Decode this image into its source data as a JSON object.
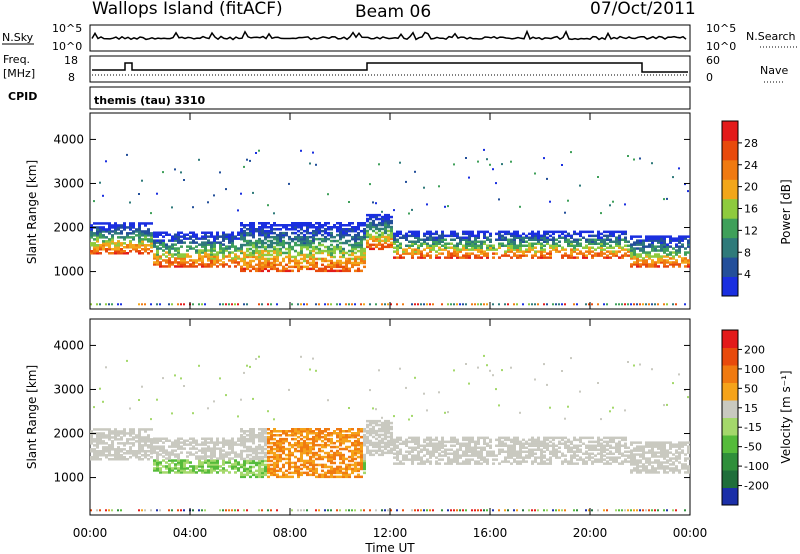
{
  "header": {
    "station": "Wallops Island (fitACF)",
    "beam": "Beam 06",
    "date": "07/Oct/2011"
  },
  "top_panels": {
    "nsky": {
      "label": "N.Sky",
      "ticks": [
        "10^5",
        "10^0"
      ],
      "right_label": "N.Search",
      "right_ticks": [
        "10^5",
        "10^0"
      ]
    },
    "freq": {
      "label_line1": "Freq.",
      "label_line2": "[MHz]",
      "ticks": [
        "18",
        "8"
      ],
      "right_label": "Nave",
      "right_ticks": [
        "60",
        "0"
      ]
    },
    "cpid": {
      "label": "CPID",
      "program": "themis (tau) 3310"
    }
  },
  "chart_data": [
    {
      "type": "heatmap",
      "name": "power",
      "ylabel": "Slant Range [km]",
      "ylim": [
        150,
        4600
      ],
      "yticks": [
        "4000",
        "3000",
        "2000",
        "1000"
      ],
      "xticks": [
        "00:00",
        "04:00",
        "08:00",
        "12:00",
        "16:00",
        "20:00",
        "00:00"
      ],
      "colorbar": {
        "label": "Power [dB]",
        "ticks": [
          "28",
          "24",
          "20",
          "16",
          "12",
          "8",
          "4"
        ],
        "colors": [
          "#1a2fe0",
          "#234f9a",
          "#2f7a7a",
          "#3fa05a",
          "#8ecb3e",
          "#f2a61a",
          "#f07a10",
          "#e84a0c",
          "#e31a1a"
        ]
      }
    },
    {
      "type": "heatmap",
      "name": "velocity",
      "ylabel": "Slant Range [km]",
      "ylim": [
        150,
        4600
      ],
      "yticks": [
        "4000",
        "3000",
        "2000",
        "1000"
      ],
      "xticks": [
        "00:00",
        "04:00",
        "08:00",
        "12:00",
        "16:00",
        "20:00",
        "00:00"
      ],
      "xlabel": "Time UT",
      "colorbar": {
        "label": "Velocity [m s⁻¹]",
        "ticks": [
          "200",
          "100",
          "50",
          "15",
          "-15",
          "-50",
          "-100",
          "-200"
        ],
        "colors": [
          "#1b2fa8",
          "#1f6e3a",
          "#2f8f3a",
          "#55bb3a",
          "#a4d86b",
          "#c9c9c0",
          "#f5a31a",
          "#f07a10",
          "#e84a0c",
          "#e31a1a"
        ]
      }
    }
  ]
}
